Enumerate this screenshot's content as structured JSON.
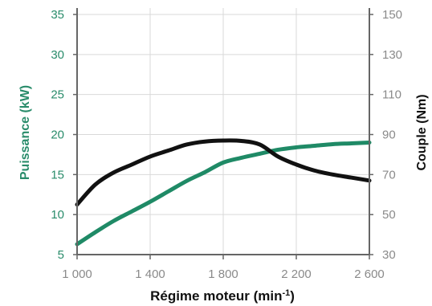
{
  "chart_data": {
    "type": "line",
    "xlabel": "Régime moteur (min",
    "xlabel_sup": "-1",
    "xlabel_end": ")",
    "ylabel_left": "Puissance (kW)",
    "ylabel_right": "Couple (Nm)",
    "xlim": [
      1000,
      2600
    ],
    "ylim_left": [
      5,
      35
    ],
    "ylim_right": [
      30,
      150
    ],
    "x_ticks": [
      1000,
      1400,
      1800,
      2200,
      2600
    ],
    "x_tick_labels": [
      "1 000",
      "1 400",
      "1 800",
      "2 200",
      "2 600"
    ],
    "y_left_ticks": [
      5,
      10,
      15,
      20,
      25,
      30,
      35
    ],
    "y_left_tick_labels": [
      "5",
      "10",
      "15",
      "20",
      "25",
      "30",
      "35"
    ],
    "y_right_ticks": [
      30,
      50,
      70,
      90,
      110,
      130,
      150
    ],
    "y_right_tick_labels": [
      "30",
      "50",
      "70",
      "90",
      "110",
      "130",
      "150"
    ],
    "grid": true,
    "series": [
      {
        "axis": "left",
        "color": "#1f8a66",
        "points": [
          [
            1000,
            6.3
          ],
          [
            1100,
            7.8
          ],
          [
            1200,
            9.2
          ],
          [
            1300,
            10.4
          ],
          [
            1400,
            11.6
          ],
          [
            1500,
            12.9
          ],
          [
            1600,
            14.2
          ],
          [
            1700,
            15.3
          ],
          [
            1800,
            16.5
          ],
          [
            1900,
            17.1
          ],
          [
            2000,
            17.6
          ],
          [
            2100,
            18.1
          ],
          [
            2200,
            18.4
          ],
          [
            2300,
            18.6
          ],
          [
            2400,
            18.8
          ],
          [
            2500,
            18.9
          ],
          [
            2600,
            19.0
          ]
        ]
      },
      {
        "axis": "right",
        "color": "#111111",
        "points": [
          [
            1000,
            55
          ],
          [
            1100,
            65
          ],
          [
            1200,
            71
          ],
          [
            1300,
            75
          ],
          [
            1400,
            79
          ],
          [
            1500,
            82
          ],
          [
            1600,
            85
          ],
          [
            1700,
            86.5
          ],
          [
            1800,
            87
          ],
          [
            1900,
            86.8
          ],
          [
            2000,
            85
          ],
          [
            2100,
            79
          ],
          [
            2200,
            75
          ],
          [
            2300,
            72
          ],
          [
            2400,
            70
          ],
          [
            2500,
            68.5
          ],
          [
            2600,
            67
          ]
        ]
      }
    ]
  }
}
